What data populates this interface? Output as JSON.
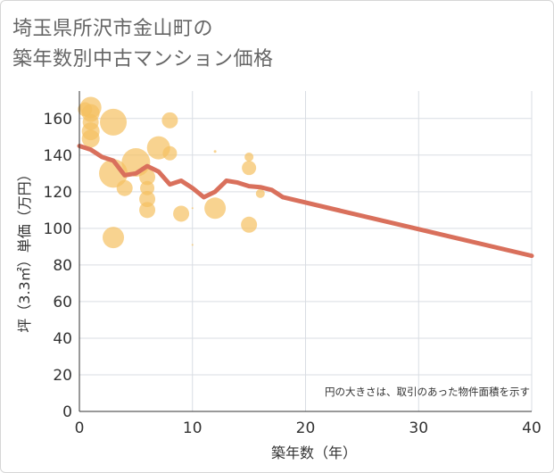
{
  "title_line1": "埼玉県所沢市金山町の",
  "title_line2": "築年数別中古マンション価格",
  "chart_data": {
    "type": "scatter",
    "title": "埼玉県所沢市金山町の築年数別中古マンション価格",
    "xlabel": "築年数（年）",
    "ylabel": "坪（3.3㎡）単価（万円）",
    "xlim": [
      0,
      40
    ],
    "ylim": [
      0,
      175
    ],
    "x_ticks": [
      0,
      10,
      20,
      30,
      40
    ],
    "y_ticks": [
      0,
      20,
      40,
      60,
      80,
      100,
      120,
      140,
      160
    ],
    "grid": true,
    "note": "円の大きさは、取引のあった物件面積を示す",
    "bubble_color": "#f5c061",
    "line_color": "#d9705c",
    "points": [
      {
        "x": 0.5,
        "y": 165,
        "size": 8
      },
      {
        "x": 1,
        "y": 166,
        "size": 12
      },
      {
        "x": 1,
        "y": 163,
        "size": 10
      },
      {
        "x": 1,
        "y": 158,
        "size": 9
      },
      {
        "x": 1,
        "y": 153,
        "size": 10
      },
      {
        "x": 1,
        "y": 149,
        "size": 10
      },
      {
        "x": 3,
        "y": 158,
        "size": 15
      },
      {
        "x": 3,
        "y": 130,
        "size": 16
      },
      {
        "x": 3,
        "y": 95,
        "size": 12
      },
      {
        "x": 4,
        "y": 122,
        "size": 9
      },
      {
        "x": 5,
        "y": 136,
        "size": 16
      },
      {
        "x": 6,
        "y": 128,
        "size": 9
      },
      {
        "x": 6,
        "y": 122,
        "size": 8
      },
      {
        "x": 6,
        "y": 116,
        "size": 9
      },
      {
        "x": 6,
        "y": 110,
        "size": 9
      },
      {
        "x": 7,
        "y": 144,
        "size": 13
      },
      {
        "x": 8,
        "y": 159,
        "size": 9
      },
      {
        "x": 8,
        "y": 141,
        "size": 8
      },
      {
        "x": 9,
        "y": 108,
        "size": 9
      },
      {
        "x": 10,
        "y": 111,
        "size": 1
      },
      {
        "x": 10,
        "y": 91,
        "size": 1
      },
      {
        "x": 12,
        "y": 142,
        "size": 1.5
      },
      {
        "x": 12,
        "y": 111,
        "size": 12
      },
      {
        "x": 15,
        "y": 139,
        "size": 5
      },
      {
        "x": 15,
        "y": 133,
        "size": 8
      },
      {
        "x": 15,
        "y": 102,
        "size": 9
      },
      {
        "x": 16,
        "y": 119,
        "size": 5
      }
    ],
    "trend": {
      "x": [
        0,
        1,
        2,
        3,
        4,
        5,
        6,
        7,
        8,
        9,
        10,
        11,
        12,
        13,
        14,
        15,
        16,
        17,
        18,
        40
      ],
      "y": [
        145,
        143,
        139,
        137,
        129,
        130,
        134,
        131,
        124,
        126,
        122,
        117,
        120,
        126,
        125,
        123,
        122.5,
        121,
        117,
        85
      ]
    }
  }
}
